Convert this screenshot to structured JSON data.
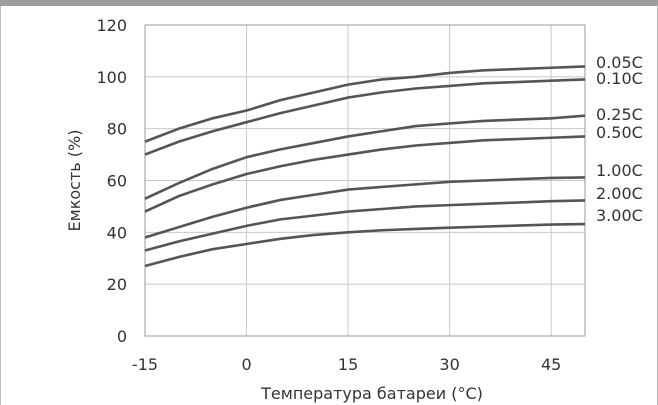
{
  "chart_data": {
    "type": "line",
    "title": "",
    "xlabel": "Температура батареи (°C)",
    "ylabel": "Емкость (%)",
    "xlim": [
      -15,
      50
    ],
    "ylim": [
      0,
      120
    ],
    "x_ticks": [
      -15,
      0,
      15,
      30,
      45
    ],
    "y_ticks": [
      0,
      20,
      40,
      60,
      80,
      100,
      120
    ],
    "x_tick_labels": [
      "-15",
      "0",
      "15",
      "30",
      "45"
    ],
    "y_tick_labels": [
      "0",
      "20",
      "40",
      "60",
      "80",
      "100",
      "120"
    ],
    "grid": true,
    "legend": "labels at right end of each line",
    "line_color": "#555555",
    "grid_color": "#c8c8c8",
    "series": [
      {
        "name": "0.05C",
        "x": [
          -15,
          -10,
          -5,
          0,
          5,
          10,
          15,
          20,
          25,
          30,
          35,
          40,
          45,
          50
        ],
        "y": [
          75,
          80,
          84,
          87,
          91,
          94,
          97,
          99,
          100,
          101.5,
          102.5,
          103,
          103.5,
          104
        ]
      },
      {
        "name": "0.10C",
        "x": [
          -15,
          -10,
          -5,
          0,
          5,
          10,
          15,
          20,
          25,
          30,
          35,
          40,
          45,
          50
        ],
        "y": [
          70,
          75,
          79,
          82.5,
          86,
          89,
          92,
          94,
          95.5,
          96.5,
          97.5,
          98,
          98.5,
          99
        ]
      },
      {
        "name": "0.25C",
        "x": [
          -15,
          -10,
          -5,
          0,
          5,
          10,
          15,
          20,
          25,
          30,
          35,
          40,
          45,
          50
        ],
        "y": [
          53,
          59,
          64.5,
          69,
          72,
          74.5,
          77,
          79,
          81,
          82,
          83,
          83.5,
          84,
          85
        ]
      },
      {
        "name": "0.50C",
        "x": [
          -15,
          -10,
          -5,
          0,
          5,
          10,
          15,
          20,
          25,
          30,
          35,
          40,
          45,
          50
        ],
        "y": [
          48,
          54,
          58.5,
          62.5,
          65.5,
          68,
          70,
          72,
          73.5,
          74.5,
          75.5,
          76,
          76.5,
          77
        ]
      },
      {
        "name": "1.00C",
        "x": [
          -15,
          -10,
          -5,
          0,
          5,
          10,
          15,
          20,
          25,
          30,
          35,
          40,
          45,
          50
        ],
        "y": [
          38,
          42,
          46,
          49.5,
          52.5,
          54.5,
          56.5,
          57.5,
          58.5,
          59.5,
          60,
          60.5,
          61,
          61.2
        ]
      },
      {
        "name": "2.00C",
        "x": [
          -15,
          -10,
          -5,
          0,
          5,
          10,
          15,
          20,
          25,
          30,
          35,
          40,
          45,
          50
        ],
        "y": [
          33,
          36.5,
          39.5,
          42.5,
          45,
          46.5,
          48,
          49,
          50,
          50.5,
          51,
          51.5,
          52,
          52.3
        ]
      },
      {
        "name": "3.00C",
        "x": [
          -15,
          -10,
          -5,
          0,
          5,
          10,
          15,
          20,
          25,
          30,
          35,
          40,
          45,
          50
        ],
        "y": [
          27,
          30.5,
          33.5,
          35.5,
          37.5,
          39,
          40,
          40.8,
          41.3,
          41.8,
          42.2,
          42.6,
          43,
          43.2
        ]
      }
    ]
  }
}
